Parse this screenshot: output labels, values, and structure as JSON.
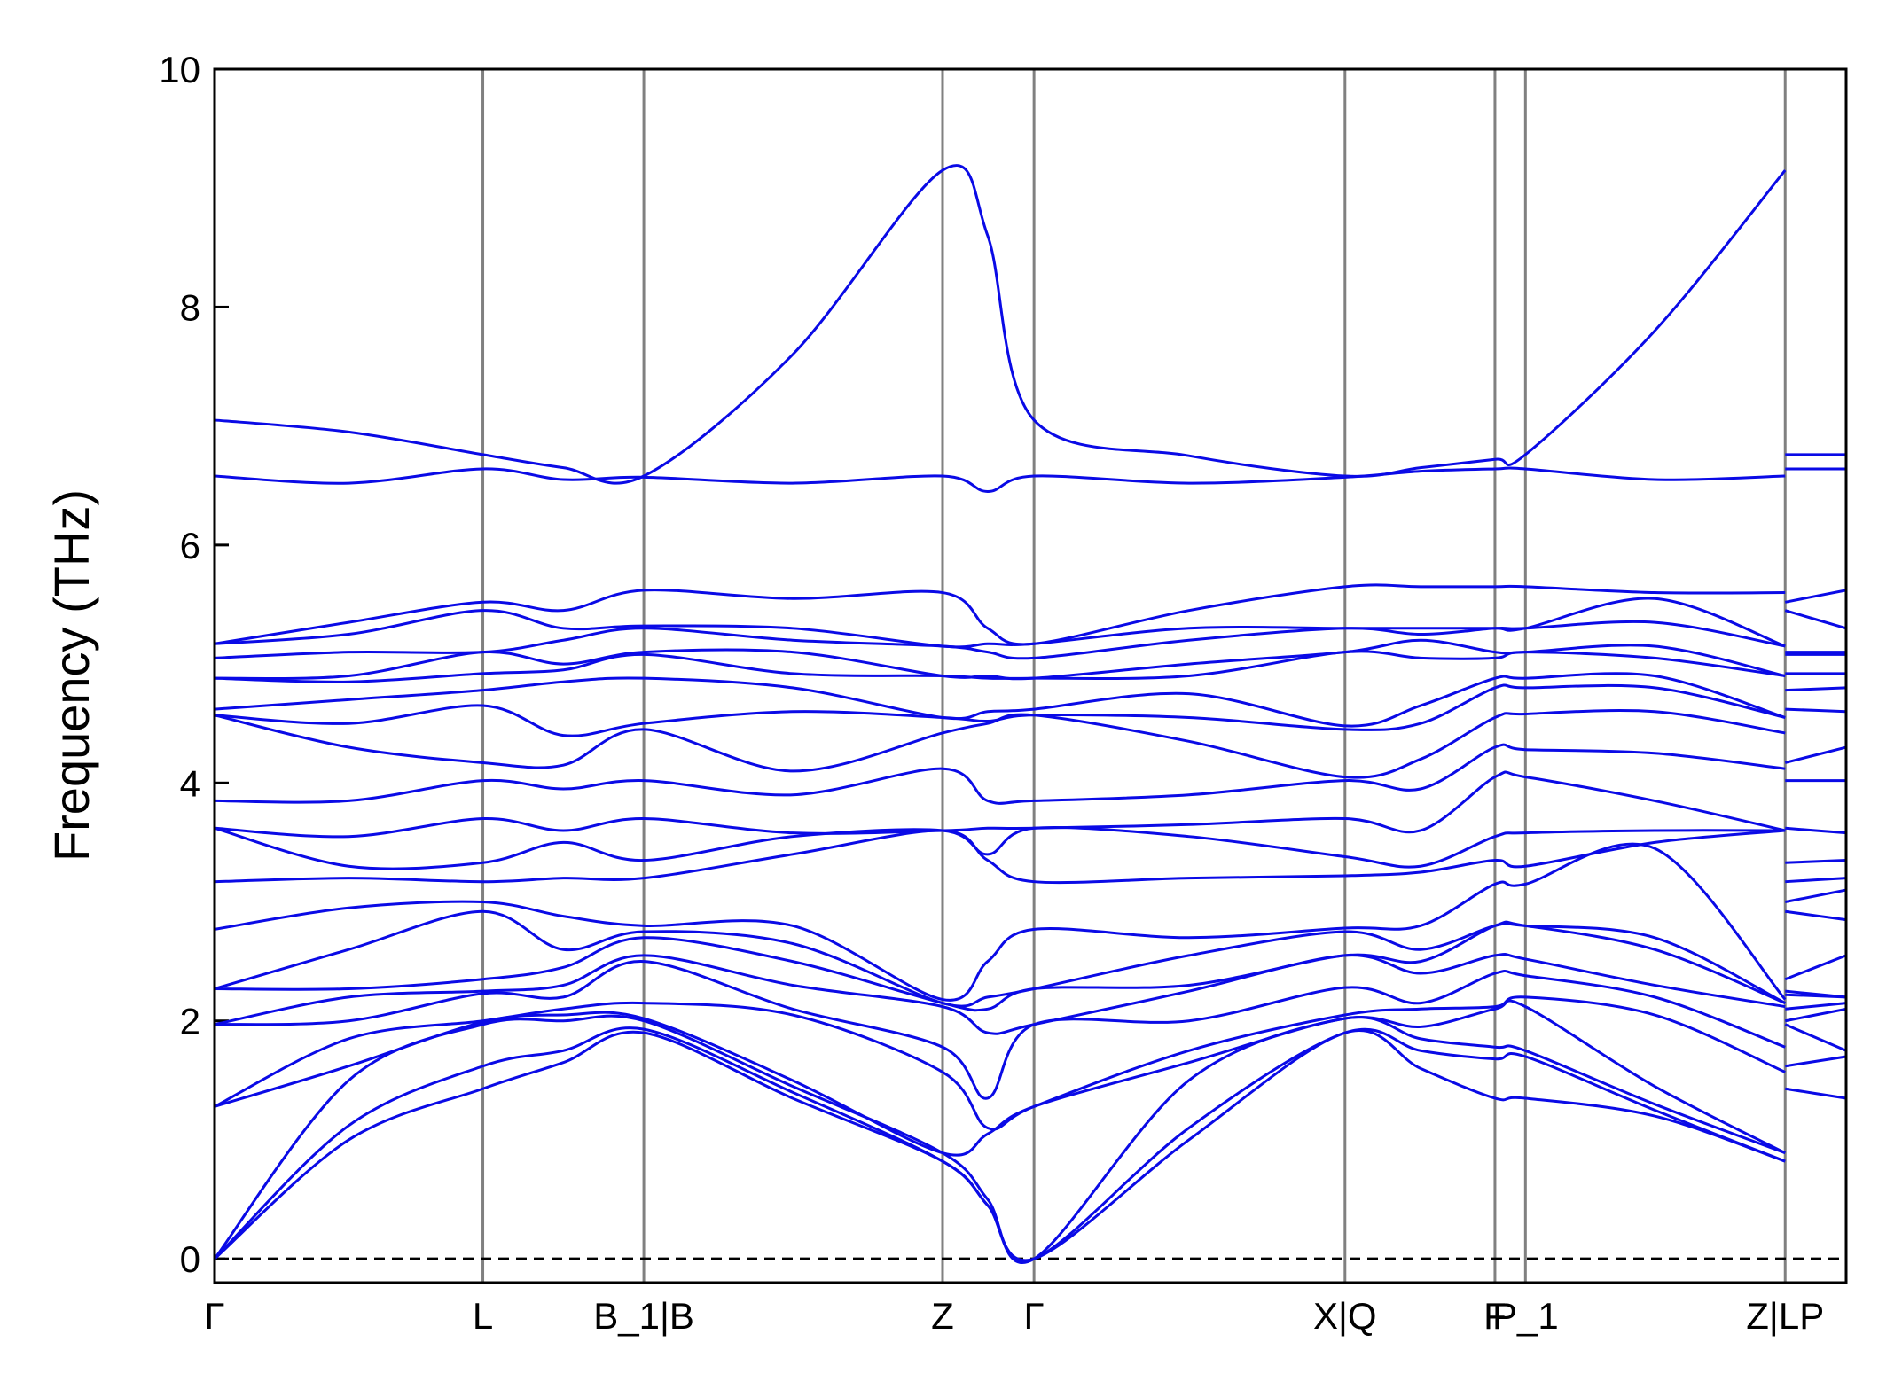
{
  "chart_data": {
    "type": "line",
    "y_label": "Frequency (THz)",
    "color": "#0a0ae6",
    "grid_color": "#808080",
    "hline": 0,
    "xlim": [
      0,
      1.338
    ],
    "ylim": [
      -0.2,
      10
    ],
    "yticks": [
      0,
      2,
      4,
      6,
      8,
      10
    ],
    "xticks": [
      {
        "value": 0,
        "label": "Γ"
      },
      {
        "value": 0.22,
        "label": "L"
      },
      {
        "value": 0.352,
        "label": "B_1|B"
      },
      {
        "value": 0.597,
        "label": "Z"
      },
      {
        "value": 0.672,
        "label": "Γ"
      },
      {
        "value": 0.927,
        "label": "X|Q"
      },
      {
        "value": 1.05,
        "label": "F"
      },
      {
        "value": 1.075,
        "label": "P_1"
      },
      {
        "value": 1.288,
        "label": "Z|LP"
      }
    ],
    "x": [
      0,
      0.11,
      0.22,
      0.286,
      0.352,
      0.474,
      0.597,
      0.634,
      0.672,
      0.799,
      0.927,
      0.989,
      1.05,
      1.075,
      1.181,
      1.288,
      1.288,
      1.288,
      1.338
    ],
    "series": [
      {
        "values": [
          0,
          1.0,
          1.43,
          1.65,
          1.9,
          1.35,
          0.82,
          0.45,
          0,
          1.0,
          1.9,
          1.6,
          1.35,
          1.35,
          1.2,
          0.82,
          null,
          1.43,
          1.35
        ]
      },
      {
        "values": [
          0,
          1.12,
          1.62,
          1.75,
          1.93,
          1.4,
          0.82,
          0.45,
          0,
          1.1,
          1.9,
          1.75,
          1.68,
          1.7,
          1.25,
          0.82,
          null,
          1.62,
          1.7
        ]
      },
      {
        "values": [
          0,
          1.5,
          1.97,
          2.0,
          2.0,
          1.45,
          0.89,
          0.5,
          0,
          1.5,
          2.02,
          1.85,
          1.78,
          1.75,
          1.3,
          0.89,
          null,
          1.97,
          1.75
        ]
      },
      {
        "values": [
          1.28,
          1.62,
          1.99,
          2.05,
          2.02,
          1.5,
          0.89,
          1.05,
          1.28,
          1.65,
          2.02,
          1.95,
          2.1,
          2.12,
          1.45,
          0.89,
          null,
          2.0,
          2.1
        ]
      },
      {
        "values": [
          1.28,
          1.85,
          2.0,
          2.1,
          2.15,
          2.05,
          1.57,
          1.1,
          1.28,
          1.75,
          2.05,
          2.1,
          2.12,
          2.2,
          2.05,
          1.57,
          null,
          2.1,
          2.15
        ]
      },
      {
        "values": [
          1.97,
          2.0,
          2.23,
          2.2,
          2.5,
          2.1,
          1.78,
          1.35,
          1.97,
          2.0,
          2.28,
          2.15,
          2.4,
          2.38,
          2.2,
          1.78,
          null,
          2.22,
          2.2
        ]
      },
      {
        "values": [
          1.97,
          2.2,
          2.25,
          2.3,
          2.55,
          2.3,
          2.12,
          1.9,
          1.97,
          2.25,
          2.55,
          2.4,
          2.55,
          2.52,
          2.3,
          2.12,
          null,
          2.25,
          2.2
        ]
      },
      {
        "values": [
          2.27,
          2.27,
          2.35,
          2.45,
          2.7,
          2.5,
          2.15,
          2.1,
          2.27,
          2.3,
          2.55,
          2.5,
          2.8,
          2.8,
          2.6,
          2.15,
          null,
          2.35,
          2.55
        ]
      },
      {
        "values": [
          2.27,
          2.6,
          2.92,
          2.6,
          2.75,
          2.65,
          2.15,
          2.2,
          2.27,
          2.55,
          2.75,
          2.6,
          2.8,
          2.8,
          2.7,
          2.15,
          null,
          2.92,
          2.85
        ]
      },
      {
        "values": [
          2.77,
          2.95,
          3.0,
          2.88,
          2.8,
          2.8,
          2.18,
          2.5,
          2.77,
          2.7,
          2.78,
          2.8,
          3.15,
          3.15,
          3.45,
          2.18,
          null,
          3.0,
          3.1
        ]
      },
      {
        "values": [
          3.17,
          3.2,
          3.17,
          3.2,
          3.2,
          3.4,
          3.6,
          3.35,
          3.17,
          3.2,
          3.22,
          3.25,
          3.35,
          3.3,
          3.5,
          3.6,
          null,
          3.17,
          3.2
        ]
      },
      {
        "values": [
          3.62,
          3.3,
          3.33,
          3.5,
          3.35,
          3.55,
          3.6,
          3.4,
          3.62,
          3.55,
          3.38,
          3.3,
          3.55,
          3.58,
          3.6,
          3.6,
          null,
          3.33,
          3.35
        ]
      },
      {
        "values": [
          3.62,
          3.55,
          3.7,
          3.6,
          3.7,
          3.58,
          3.6,
          3.62,
          3.62,
          3.65,
          3.7,
          3.6,
          4.05,
          4.05,
          3.85,
          3.6,
          null,
          3.62,
          3.58
        ]
      },
      {
        "values": [
          3.85,
          3.85,
          4.02,
          3.95,
          4.02,
          3.9,
          4.12,
          3.85,
          3.85,
          3.9,
          4.02,
          3.95,
          4.3,
          4.28,
          4.25,
          4.12,
          null,
          4.02,
          4.02
        ]
      },
      {
        "values": [
          4.57,
          4.3,
          4.17,
          4.15,
          4.45,
          4.1,
          4.42,
          4.5,
          4.57,
          4.35,
          4.05,
          4.2,
          4.55,
          4.58,
          4.6,
          4.42,
          null,
          4.17,
          4.3
        ]
      },
      {
        "values": [
          4.57,
          4.5,
          4.65,
          4.4,
          4.5,
          4.6,
          4.55,
          4.52,
          4.57,
          4.55,
          4.45,
          4.5,
          4.8,
          4.8,
          4.8,
          4.55,
          null,
          4.62,
          4.6
        ]
      },
      {
        "values": [
          4.62,
          4.7,
          4.78,
          4.85,
          4.88,
          4.8,
          4.55,
          4.6,
          4.62,
          4.75,
          4.48,
          4.65,
          4.88,
          4.88,
          4.9,
          4.55,
          null,
          4.78,
          4.8
        ]
      },
      {
        "values": [
          4.88,
          4.85,
          4.92,
          4.95,
          5.08,
          4.92,
          4.9,
          4.88,
          4.88,
          4.9,
          5.1,
          5.05,
          5.05,
          5.1,
          5.05,
          4.9,
          null,
          4.92,
          4.92
        ]
      },
      {
        "values": [
          4.88,
          4.9,
          5.1,
          5.0,
          5.1,
          5.1,
          4.9,
          4.9,
          4.88,
          5.0,
          5.1,
          5.2,
          5.1,
          5.1,
          5.15,
          4.9,
          null,
          5.08,
          5.08
        ]
      },
      {
        "values": [
          5.05,
          5.1,
          5.1,
          5.2,
          5.3,
          5.2,
          5.15,
          5.1,
          5.05,
          5.2,
          5.3,
          5.25,
          5.3,
          5.3,
          5.35,
          5.15,
          null,
          5.1,
          5.1
        ]
      },
      {
        "values": [
          5.17,
          5.25,
          5.45,
          5.3,
          5.32,
          5.3,
          5.15,
          5.17,
          5.17,
          5.3,
          5.3,
          5.3,
          5.3,
          5.3,
          5.55,
          5.15,
          null,
          5.45,
          5.3
        ]
      },
      {
        "values": [
          5.17,
          5.35,
          5.52,
          5.45,
          5.62,
          5.55,
          5.6,
          5.3,
          5.17,
          5.45,
          5.65,
          5.65,
          5.65,
          5.65,
          5.6,
          5.6,
          null,
          5.52,
          5.62
        ]
      },
      {
        "values": [
          6.58,
          6.52,
          6.64,
          6.55,
          6.57,
          6.52,
          6.58,
          6.45,
          6.58,
          6.52,
          6.57,
          6.62,
          6.64,
          6.64,
          6.55,
          6.58,
          null,
          6.64,
          6.64
        ]
      },
      {
        "values": [
          7.05,
          6.95,
          6.76,
          6.65,
          6.58,
          7.6,
          9.15,
          8.6,
          7.05,
          6.75,
          6.58,
          6.65,
          6.72,
          6.76,
          7.8,
          9.15,
          null,
          6.76,
          6.76
        ]
      }
    ]
  }
}
